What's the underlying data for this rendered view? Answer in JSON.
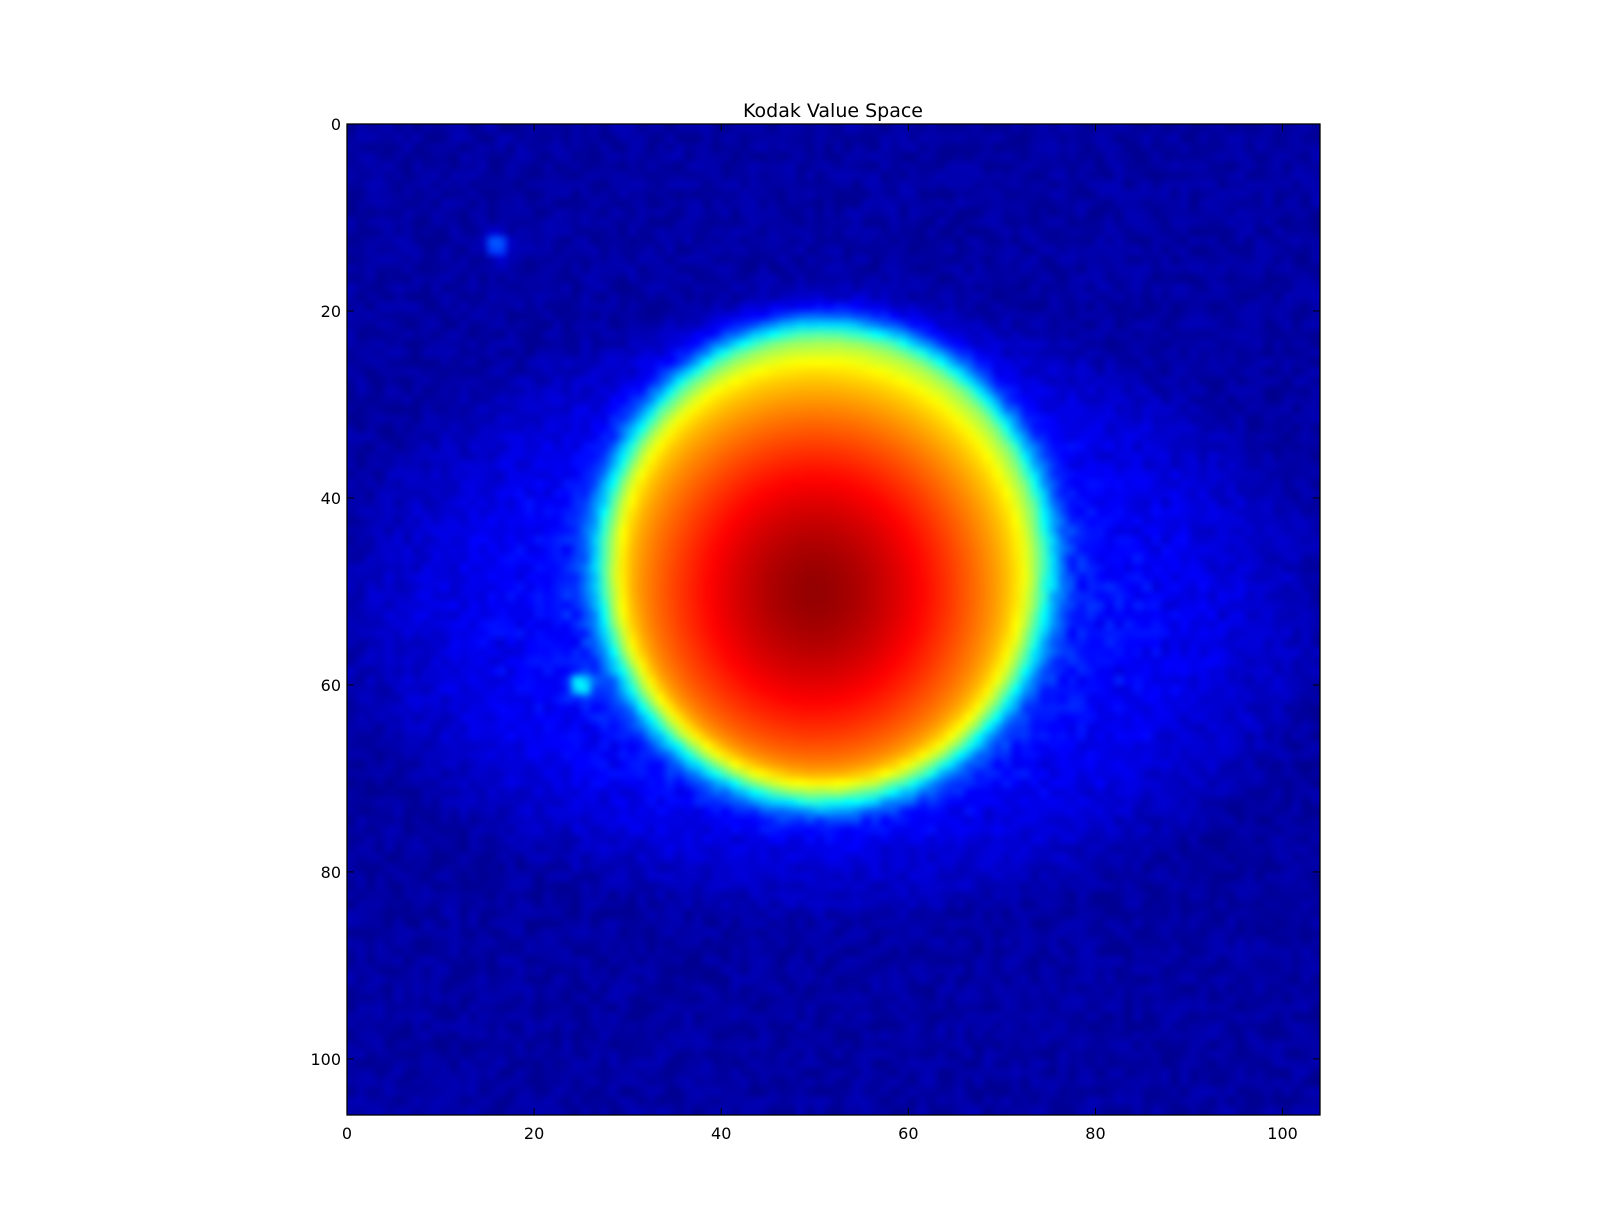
{
  "chart_data": {
    "type": "heatmap",
    "title": "Kodak Value Space",
    "xlabel": "",
    "ylabel": "",
    "xlim": [
      0,
      104
    ],
    "ylim": [
      106,
      0
    ],
    "x_ticks": [
      0,
      20,
      40,
      60,
      80,
      100
    ],
    "x_tick_labels": [
      "0",
      "20",
      "40",
      "60",
      "80",
      "100"
    ],
    "y_ticks": [
      0,
      20,
      40,
      60,
      80,
      100
    ],
    "y_tick_labels": [
      "0",
      "20",
      "40",
      "60",
      "80",
      "100"
    ],
    "colormap": "jet",
    "background_color": "#00007f",
    "grid": false,
    "legend": "none",
    "features": [
      {
        "kind": "disk",
        "center_x": 51,
        "center_y": 47,
        "radius_x": 24,
        "radius_y": 25.5,
        "peak_value": 0.98,
        "edge_value": 0.62,
        "peak_x": 50,
        "peak_y": 50
      },
      {
        "kind": "halo",
        "center_x": 52,
        "center_y": 52,
        "radius_x": 55,
        "radius_y": 34,
        "value": 0.13
      },
      {
        "kind": "spot",
        "x": 16,
        "y": 13,
        "value": 0.25
      },
      {
        "kind": "spot",
        "x": 25,
        "y": 60,
        "value": 0.32
      }
    ]
  }
}
